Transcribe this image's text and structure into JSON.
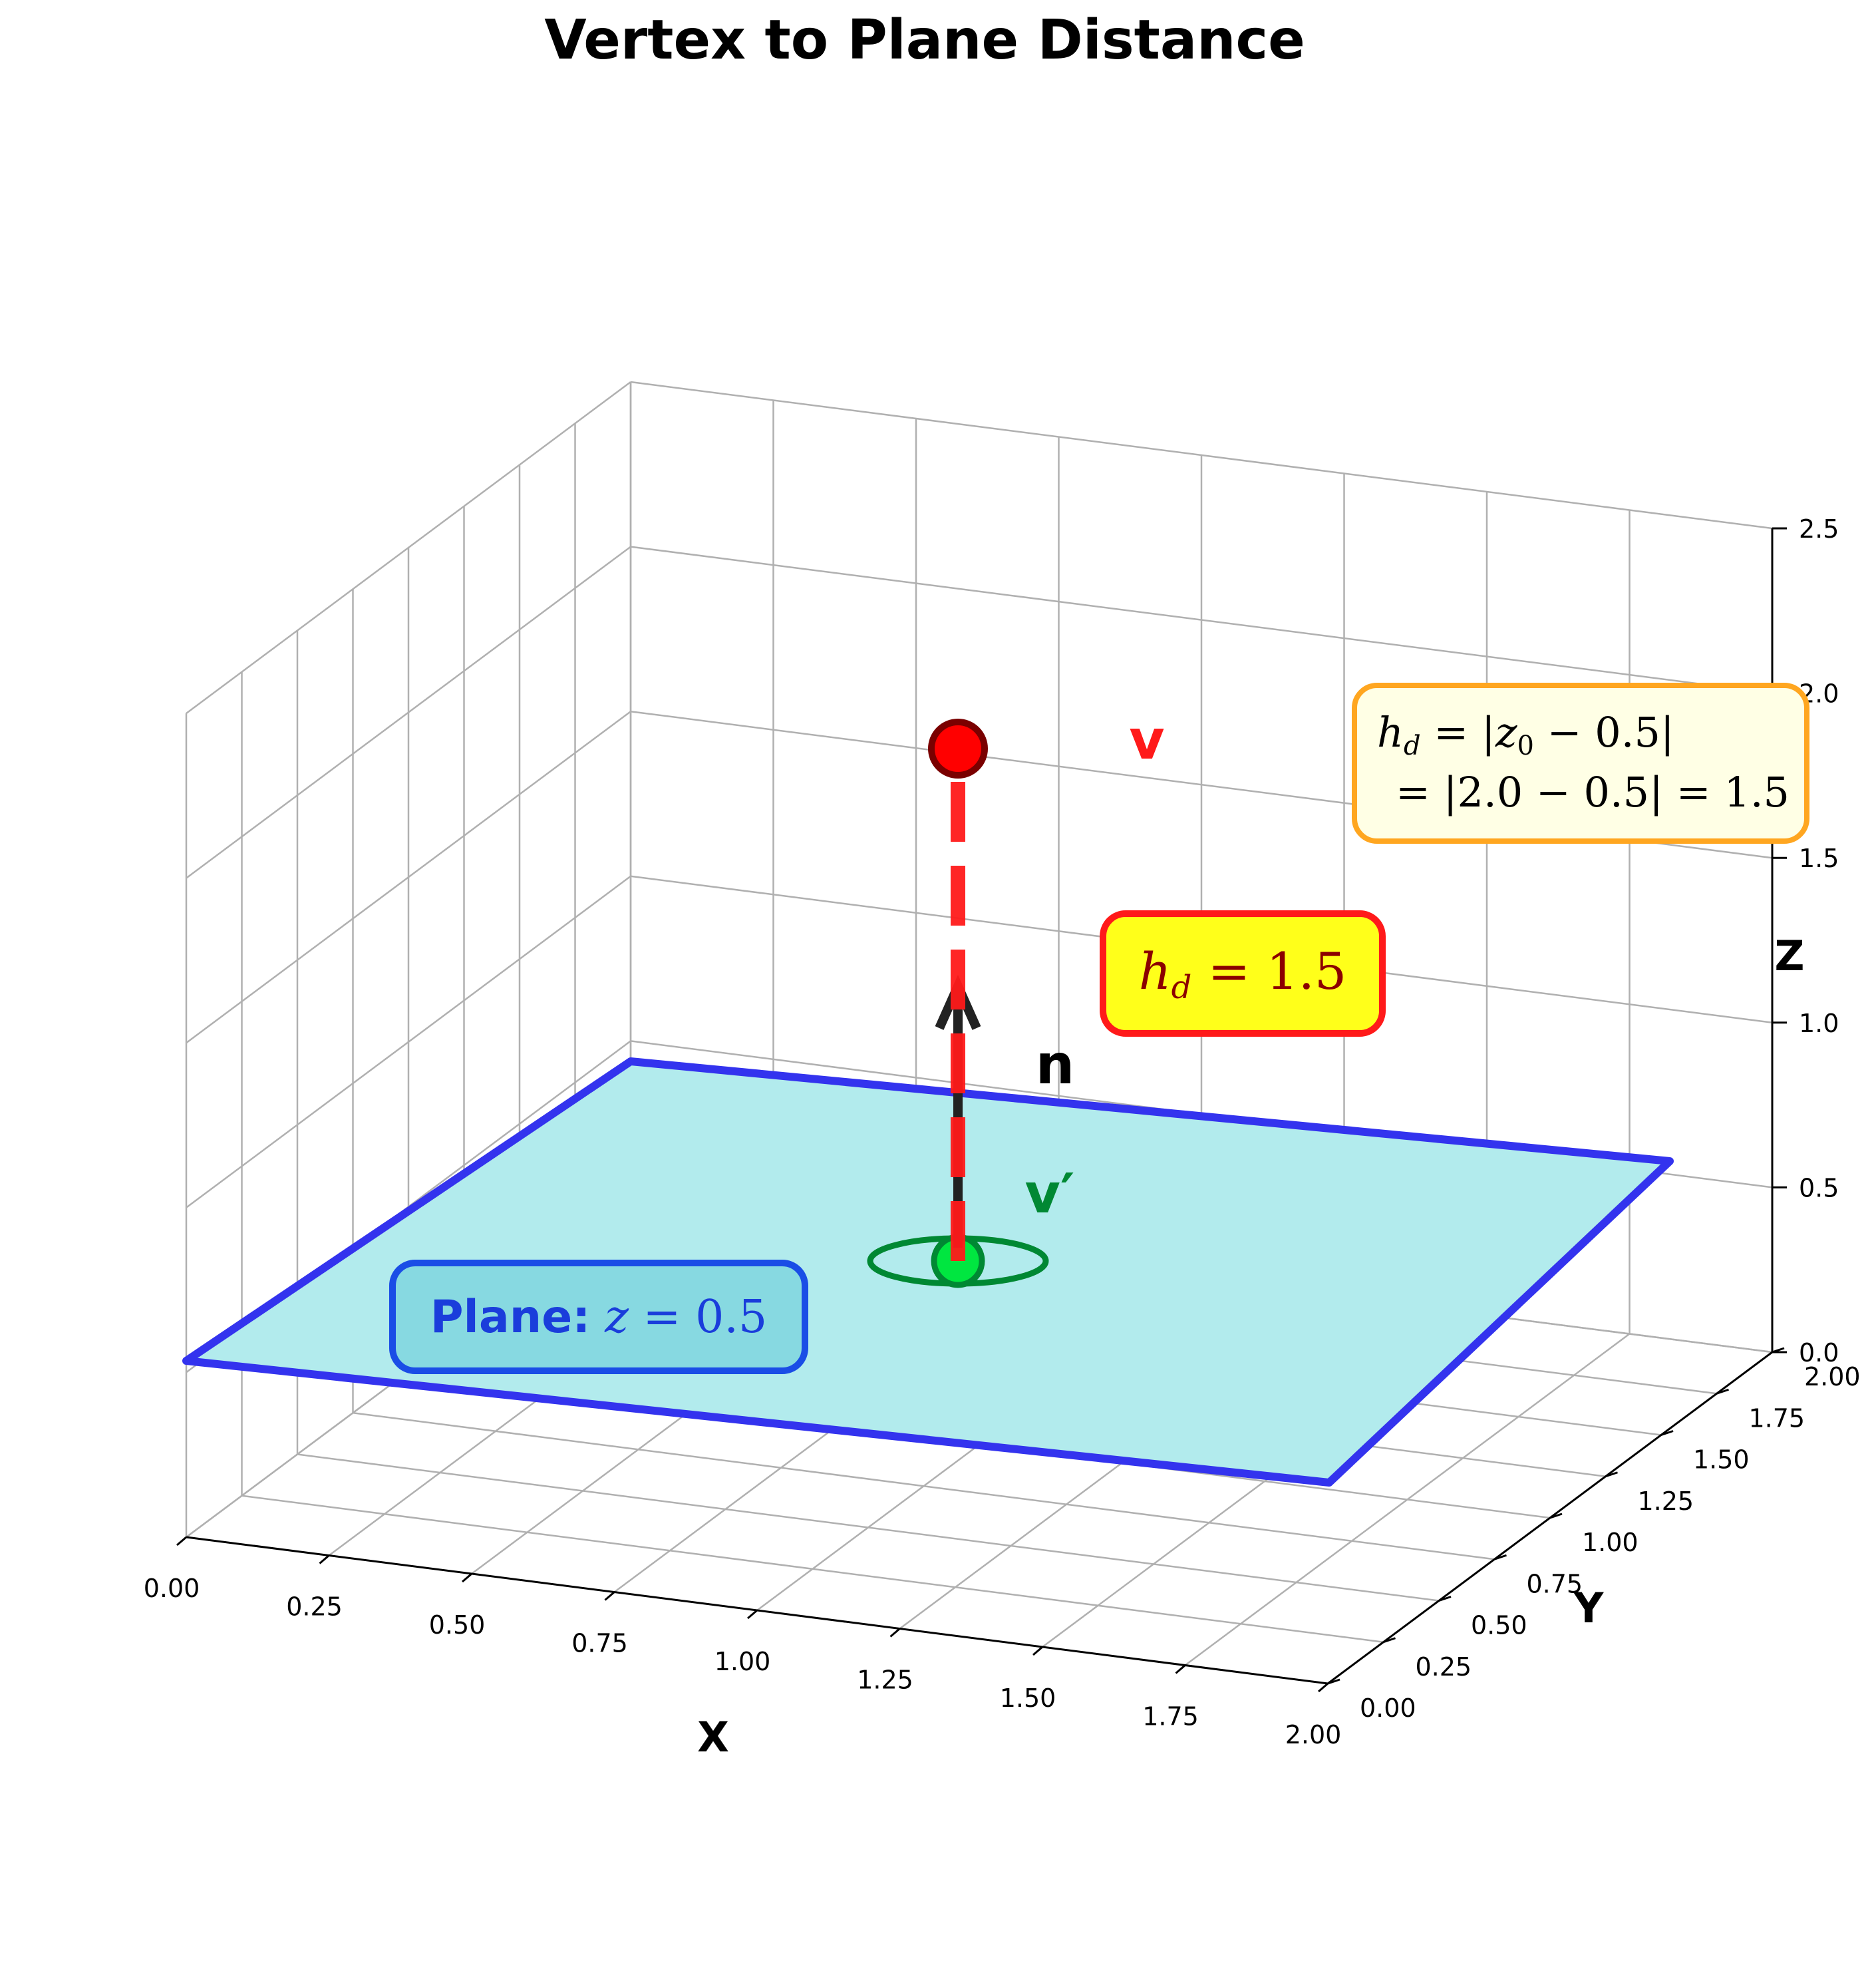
{
  "title": "Vertex to Plane Distance",
  "axes": {
    "x": {
      "label": "X",
      "ticks": [
        "0.00",
        "0.25",
        "0.50",
        "0.75",
        "1.00",
        "1.25",
        "1.50",
        "1.75",
        "2.00"
      ],
      "range": [
        0,
        2
      ]
    },
    "y": {
      "label": "Y",
      "ticks": [
        "0.00",
        "0.25",
        "0.50",
        "0.75",
        "1.00",
        "1.25",
        "1.50",
        "1.75",
        "2.00"
      ],
      "range": [
        0,
        2
      ]
    },
    "z": {
      "label": "Z",
      "ticks": [
        "0.0",
        "0.5",
        "1.0",
        "1.5",
        "2.0",
        "2.5"
      ],
      "range": [
        0,
        2.5
      ]
    }
  },
  "plane": {
    "z": 0.5,
    "fill": "#b2ebed",
    "edge": "#3333ee"
  },
  "vertex": {
    "label": "v",
    "x": 1.0,
    "y": 1.0,
    "z": 2.0,
    "color": "#ff0000"
  },
  "projection": {
    "label": "v′",
    "x": 1.0,
    "y": 1.0,
    "z": 0.5,
    "color": "#00e640"
  },
  "normal": {
    "label": "n"
  },
  "annotations": {
    "plane_box": {
      "bold": "Plane:",
      "var": "z",
      "eq": " = 0.5"
    },
    "hd_box": {
      "h": "h",
      "sub": "d",
      "rest": " = 1.5"
    },
    "formula_box": {
      "line1_h": "h",
      "line1_sub": "d",
      "line1_eq": " = |",
      "line1_z": "z",
      "line1_zsub": "0",
      "line1_end": " − 0.5|",
      "line2": "= |2.0 − 0.5| = 1.5"
    }
  },
  "colors": {
    "grid": "#b0b0b0",
    "pane": "#ffffff",
    "arrow": "#222222",
    "dash": "#ff1a1a",
    "proj_ring": "#008833",
    "formula_bg": "#ffffe5",
    "formula_edge": "#ffa620",
    "hd_bg": "#ffff1a",
    "hd_edge": "#ff1a1a",
    "hd_text": "#8b0000",
    "plane_box_bg": "#7fd6de",
    "plane_box_edge": "#1a4de6",
    "plane_box_text": "#1a3ddb"
  }
}
